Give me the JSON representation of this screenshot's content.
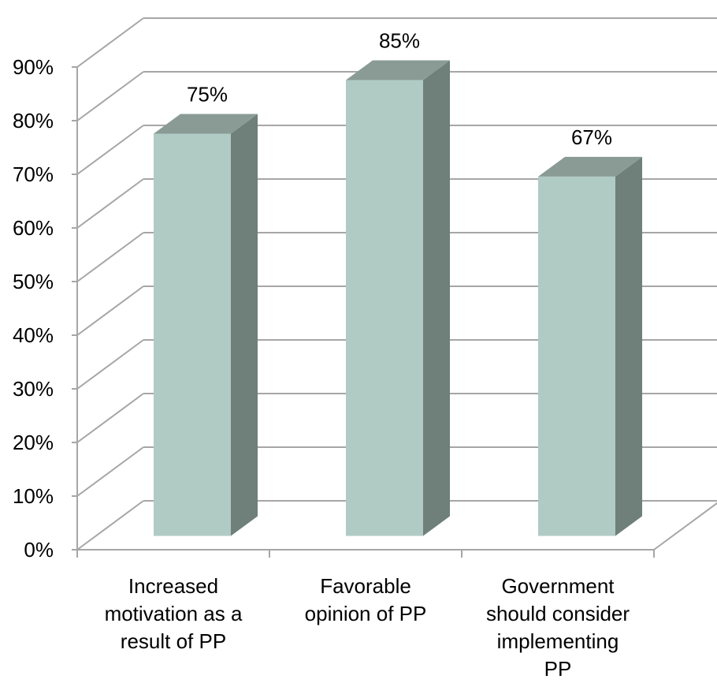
{
  "chart_data": {
    "type": "bar",
    "style": "3d-column",
    "title": "",
    "xlabel": "",
    "ylabel": "",
    "categories": [
      "Increased motivation as a result of PP",
      "Favorable opinion of PP",
      "Government should consider implementing PP"
    ],
    "category_lines": [
      [
        "Increased",
        "motivation as a",
        "result of PP"
      ],
      [
        "Favorable",
        "opinion of PP"
      ],
      [
        "Government",
        "should consider",
        "implementing",
        "PP"
      ]
    ],
    "series": [
      {
        "values": [
          75,
          85,
          67
        ],
        "data_labels": [
          "75%",
          "85%",
          "67%"
        ]
      }
    ],
    "ylim": [
      0,
      90
    ],
    "yticks": [
      0,
      10,
      20,
      30,
      40,
      50,
      60,
      70,
      80,
      90
    ],
    "ytick_labels": [
      "0%",
      "10%",
      "20%",
      "30%",
      "40%",
      "50%",
      "60%",
      "70%",
      "80%",
      "90%"
    ],
    "grid": true,
    "legend": "none",
    "colors": {
      "bar_front": "#b0cbc4",
      "bar_side": "#6f7f7a",
      "bar_top": "#8a9b96",
      "gridline": "#a6a6a6",
      "axis": "#a6a6a6",
      "text": "#000000"
    }
  }
}
